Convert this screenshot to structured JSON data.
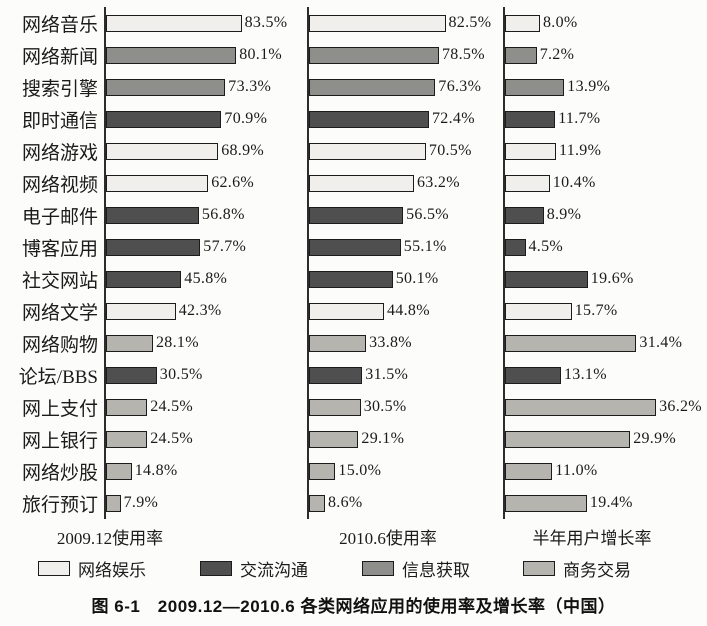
{
  "figure": {
    "caption": "图 6-1　2009.12—2010.6 各类网络应用的使用率及增长率（中国）"
  },
  "chart_data": {
    "type": "bar",
    "orientation": "horizontal",
    "unit": "%",
    "legend_position": "bottom",
    "value_labels_shown": true,
    "panels": [
      {
        "axis_label": "2009.12使用率",
        "value_range": [
          0,
          100
        ]
      },
      {
        "axis_label": "2010.6使用率",
        "value_range": [
          0,
          100
        ]
      },
      {
        "axis_label": "半年用户增长率",
        "value_range": [
          0,
          40
        ]
      }
    ],
    "groups": {
      "entertainment": {
        "label": "网络娱乐",
        "color": "#f0efeb"
      },
      "communication": {
        "label": "交流沟通",
        "color": "#4f4f4f"
      },
      "information": {
        "label": "信息获取",
        "color": "#8e8e8a"
      },
      "commerce": {
        "label": "商务交易",
        "color": "#b6b4ae"
      }
    },
    "legend": [
      {
        "group": "entertainment",
        "label": "网络娱乐"
      },
      {
        "group": "communication",
        "label": "交流沟通"
      },
      {
        "group": "information",
        "label": "信息获取"
      },
      {
        "group": "commerce",
        "label": "商务交易"
      }
    ],
    "categories": [
      "网络音乐",
      "网络新闻",
      "搜索引擎",
      "即时通信",
      "网络游戏",
      "网络视频",
      "电子邮件",
      "博客应用",
      "社交网站",
      "网络文学",
      "网络购物",
      "论坛/BBS",
      "网上支付",
      "网上银行",
      "网络炒股",
      "旅行预订"
    ],
    "rows": [
      {
        "label": "网络音乐",
        "group": "entertainment",
        "values": [
          83.5,
          82.5,
          8.0
        ]
      },
      {
        "label": "网络新闻",
        "group": "information",
        "values": [
          80.1,
          78.5,
          7.2
        ]
      },
      {
        "label": "搜索引擎",
        "group": "information",
        "values": [
          73.3,
          76.3,
          13.9
        ]
      },
      {
        "label": "即时通信",
        "group": "communication",
        "values": [
          70.9,
          72.4,
          11.7
        ]
      },
      {
        "label": "网络游戏",
        "group": "entertainment",
        "values": [
          68.9,
          70.5,
          11.9
        ]
      },
      {
        "label": "网络视频",
        "group": "entertainment",
        "values": [
          62.6,
          63.2,
          10.4
        ]
      },
      {
        "label": "电子邮件",
        "group": "communication",
        "values": [
          56.8,
          56.5,
          8.9
        ]
      },
      {
        "label": "博客应用",
        "group": "communication",
        "values": [
          57.7,
          55.1,
          4.5
        ]
      },
      {
        "label": "社交网站",
        "group": "communication",
        "values": [
          45.8,
          50.1,
          19.6
        ]
      },
      {
        "label": "网络文学",
        "group": "entertainment",
        "values": [
          42.3,
          44.8,
          15.7
        ]
      },
      {
        "label": "网络购物",
        "group": "commerce",
        "values": [
          28.1,
          33.8,
          31.4
        ]
      },
      {
        "label": "论坛/BBS",
        "group": "communication",
        "values": [
          30.5,
          31.5,
          13.1
        ]
      },
      {
        "label": "网上支付",
        "group": "commerce",
        "values": [
          24.5,
          30.5,
          36.2
        ]
      },
      {
        "label": "网上银行",
        "group": "commerce",
        "values": [
          24.5,
          29.1,
          29.9
        ]
      },
      {
        "label": "网络炒股",
        "group": "commerce",
        "values": [
          14.8,
          15.0,
          11.0
        ]
      },
      {
        "label": "旅行预订",
        "group": "commerce",
        "values": [
          7.9,
          8.6,
          19.4
        ]
      }
    ]
  }
}
